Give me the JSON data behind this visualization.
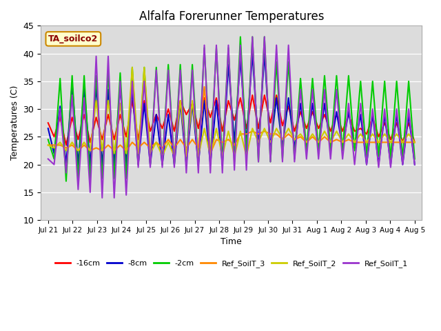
{
  "title": "Alfalfa Forerunner Temperatures",
  "xlabel": "Time",
  "ylabel": "Temperatures (C)",
  "ylim": [
    10,
    45
  ],
  "yticks": [
    10,
    15,
    20,
    25,
    30,
    35,
    40,
    45
  ],
  "bg_color": "#dcdcdc",
  "grid_color": "#ffffff",
  "annotation_text": "TA_soilco2",
  "annotation_color": "#8b0000",
  "annotation_bg": "#ffffcc",
  "annotation_border": "#cc8800",
  "series_colors": {
    "-16cm": "#ff0000",
    "-8cm": "#0000cc",
    "-2cm": "#00cc00",
    "Ref_SoilT_3": "#ff8800",
    "Ref_SoilT_2": "#cccc00",
    "Ref_SoilT_1": "#9933cc"
  },
  "x_labels": [
    "Jul 21",
    "Jul 22",
    "Jul 23",
    "Jul 24",
    "Jul 25",
    "Jul 26",
    "Jul 27",
    "Jul 28",
    "Jul 29",
    "Jul 30",
    "Jul 31",
    "Aug 1",
    "Aug 2",
    "Aug 3",
    "Aug 4",
    "Aug 5"
  ],
  "num_days": 16,
  "pts_per_day": 4,
  "series": {
    "-16cm": [
      27.5,
      25.0,
      28.5,
      23.5,
      28.5,
      24.5,
      29.0,
      24.0,
      28.5,
      24.5,
      29.0,
      24.5,
      29.0,
      25.0,
      31.5,
      24.5,
      31.5,
      26.0,
      29.0,
      26.5,
      30.0,
      26.0,
      31.5,
      29.0,
      31.0,
      26.5,
      32.0,
      28.5,
      32.0,
      26.0,
      31.5,
      28.0,
      32.0,
      26.5,
      32.5,
      26.5,
      32.5,
      27.5,
      32.5,
      27.0,
      30.5,
      26.0,
      29.5,
      26.5,
      29.5,
      26.5,
      29.0,
      26.0,
      29.0,
      26.0,
      29.0,
      26.0,
      26.5,
      25.5,
      28.5,
      25.0,
      27.5,
      24.5,
      27.5,
      24.0,
      27.5,
      24.0
    ],
    "-8cm": [
      26.5,
      22.0,
      30.5,
      20.0,
      34.5,
      20.0,
      34.0,
      20.0,
      34.0,
      20.0,
      33.5,
      20.0,
      34.0,
      20.0,
      33.5,
      20.0,
      31.0,
      20.0,
      29.0,
      20.0,
      29.0,
      20.0,
      31.0,
      20.0,
      31.0,
      20.0,
      31.5,
      20.0,
      31.5,
      20.0,
      38.0,
      24.0,
      39.0,
      24.0,
      40.0,
      23.0,
      40.0,
      23.0,
      32.0,
      23.0,
      32.0,
      23.0,
      31.0,
      23.0,
      31.0,
      23.0,
      31.0,
      23.0,
      29.5,
      23.0,
      29.5,
      23.0,
      29.0,
      20.0,
      29.0,
      20.0,
      29.0,
      20.0,
      29.0,
      20.0,
      29.0,
      20.0
    ],
    "-2cm": [
      24.5,
      21.0,
      35.5,
      17.0,
      36.0,
      17.5,
      36.0,
      17.5,
      36.0,
      17.5,
      36.5,
      17.5,
      36.5,
      17.5,
      37.5,
      20.0,
      37.5,
      20.0,
      37.5,
      20.0,
      38.0,
      20.0,
      38.0,
      20.0,
      38.0,
      20.0,
      41.0,
      20.5,
      41.0,
      20.5,
      41.0,
      20.5,
      43.0,
      22.0,
      43.0,
      20.5,
      43.0,
      20.5,
      38.5,
      21.0,
      38.5,
      21.0,
      35.5,
      22.5,
      35.5,
      22.5,
      36.0,
      22.5,
      36.0,
      22.5,
      36.0,
      22.5,
      35.0,
      21.5,
      35.0,
      21.5,
      35.0,
      21.0,
      35.0,
      21.0,
      35.0,
      21.0
    ],
    "Ref_SoilT_3": [
      23.5,
      23.5,
      23.5,
      23.0,
      23.5,
      22.5,
      23.5,
      22.5,
      23.0,
      22.5,
      23.5,
      22.5,
      23.5,
      22.5,
      24.0,
      23.0,
      24.0,
      23.0,
      24.0,
      23.0,
      24.5,
      23.0,
      24.5,
      23.0,
      24.5,
      23.0,
      34.0,
      22.0,
      24.5,
      24.0,
      24.5,
      23.5,
      25.5,
      25.5,
      26.0,
      25.5,
      26.0,
      25.5,
      25.5,
      24.5,
      25.5,
      24.5,
      25.0,
      24.0,
      25.0,
      24.0,
      25.0,
      24.0,
      24.5,
      24.0,
      24.5,
      24.0,
      24.0,
      24.0,
      24.0,
      24.0,
      24.0,
      24.0,
      24.0,
      24.0,
      24.0,
      24.0
    ],
    "Ref_SoilT_2": [
      23.5,
      23.0,
      24.0,
      22.5,
      24.0,
      22.5,
      24.0,
      22.5,
      31.5,
      22.5,
      31.5,
      22.0,
      31.0,
      22.0,
      37.5,
      22.0,
      37.5,
      22.0,
      24.0,
      21.5,
      24.0,
      21.5,
      31.5,
      21.5,
      31.5,
      21.5,
      26.5,
      21.5,
      26.5,
      21.5,
      26.0,
      21.5,
      26.0,
      21.5,
      26.5,
      24.0,
      26.5,
      24.0,
      26.5,
      24.5,
      26.5,
      24.5,
      25.5,
      24.0,
      25.5,
      24.0,
      26.0,
      24.0,
      26.0,
      24.0,
      25.5,
      24.0,
      25.5,
      24.0,
      25.5,
      24.0,
      25.5,
      24.0,
      25.5,
      24.0,
      25.5,
      24.0
    ],
    "Ref_SoilT_1": [
      21.0,
      20.0,
      30.0,
      18.5,
      32.5,
      15.5,
      32.0,
      15.0,
      39.5,
      14.0,
      39.5,
      14.0,
      35.0,
      14.5,
      35.0,
      19.5,
      35.0,
      19.5,
      37.0,
      19.5,
      37.0,
      19.5,
      37.0,
      18.5,
      37.0,
      18.5,
      41.5,
      18.5,
      41.5,
      18.5,
      41.5,
      19.0,
      41.5,
      19.0,
      43.0,
      20.5,
      43.0,
      20.5,
      41.5,
      20.5,
      41.5,
      20.5,
      33.5,
      21.0,
      33.5,
      21.0,
      33.5,
      21.0,
      33.5,
      21.0,
      31.0,
      20.0,
      31.0,
      20.0,
      30.0,
      19.5,
      30.0,
      19.5,
      30.0,
      20.0,
      30.0,
      20.0
    ]
  }
}
